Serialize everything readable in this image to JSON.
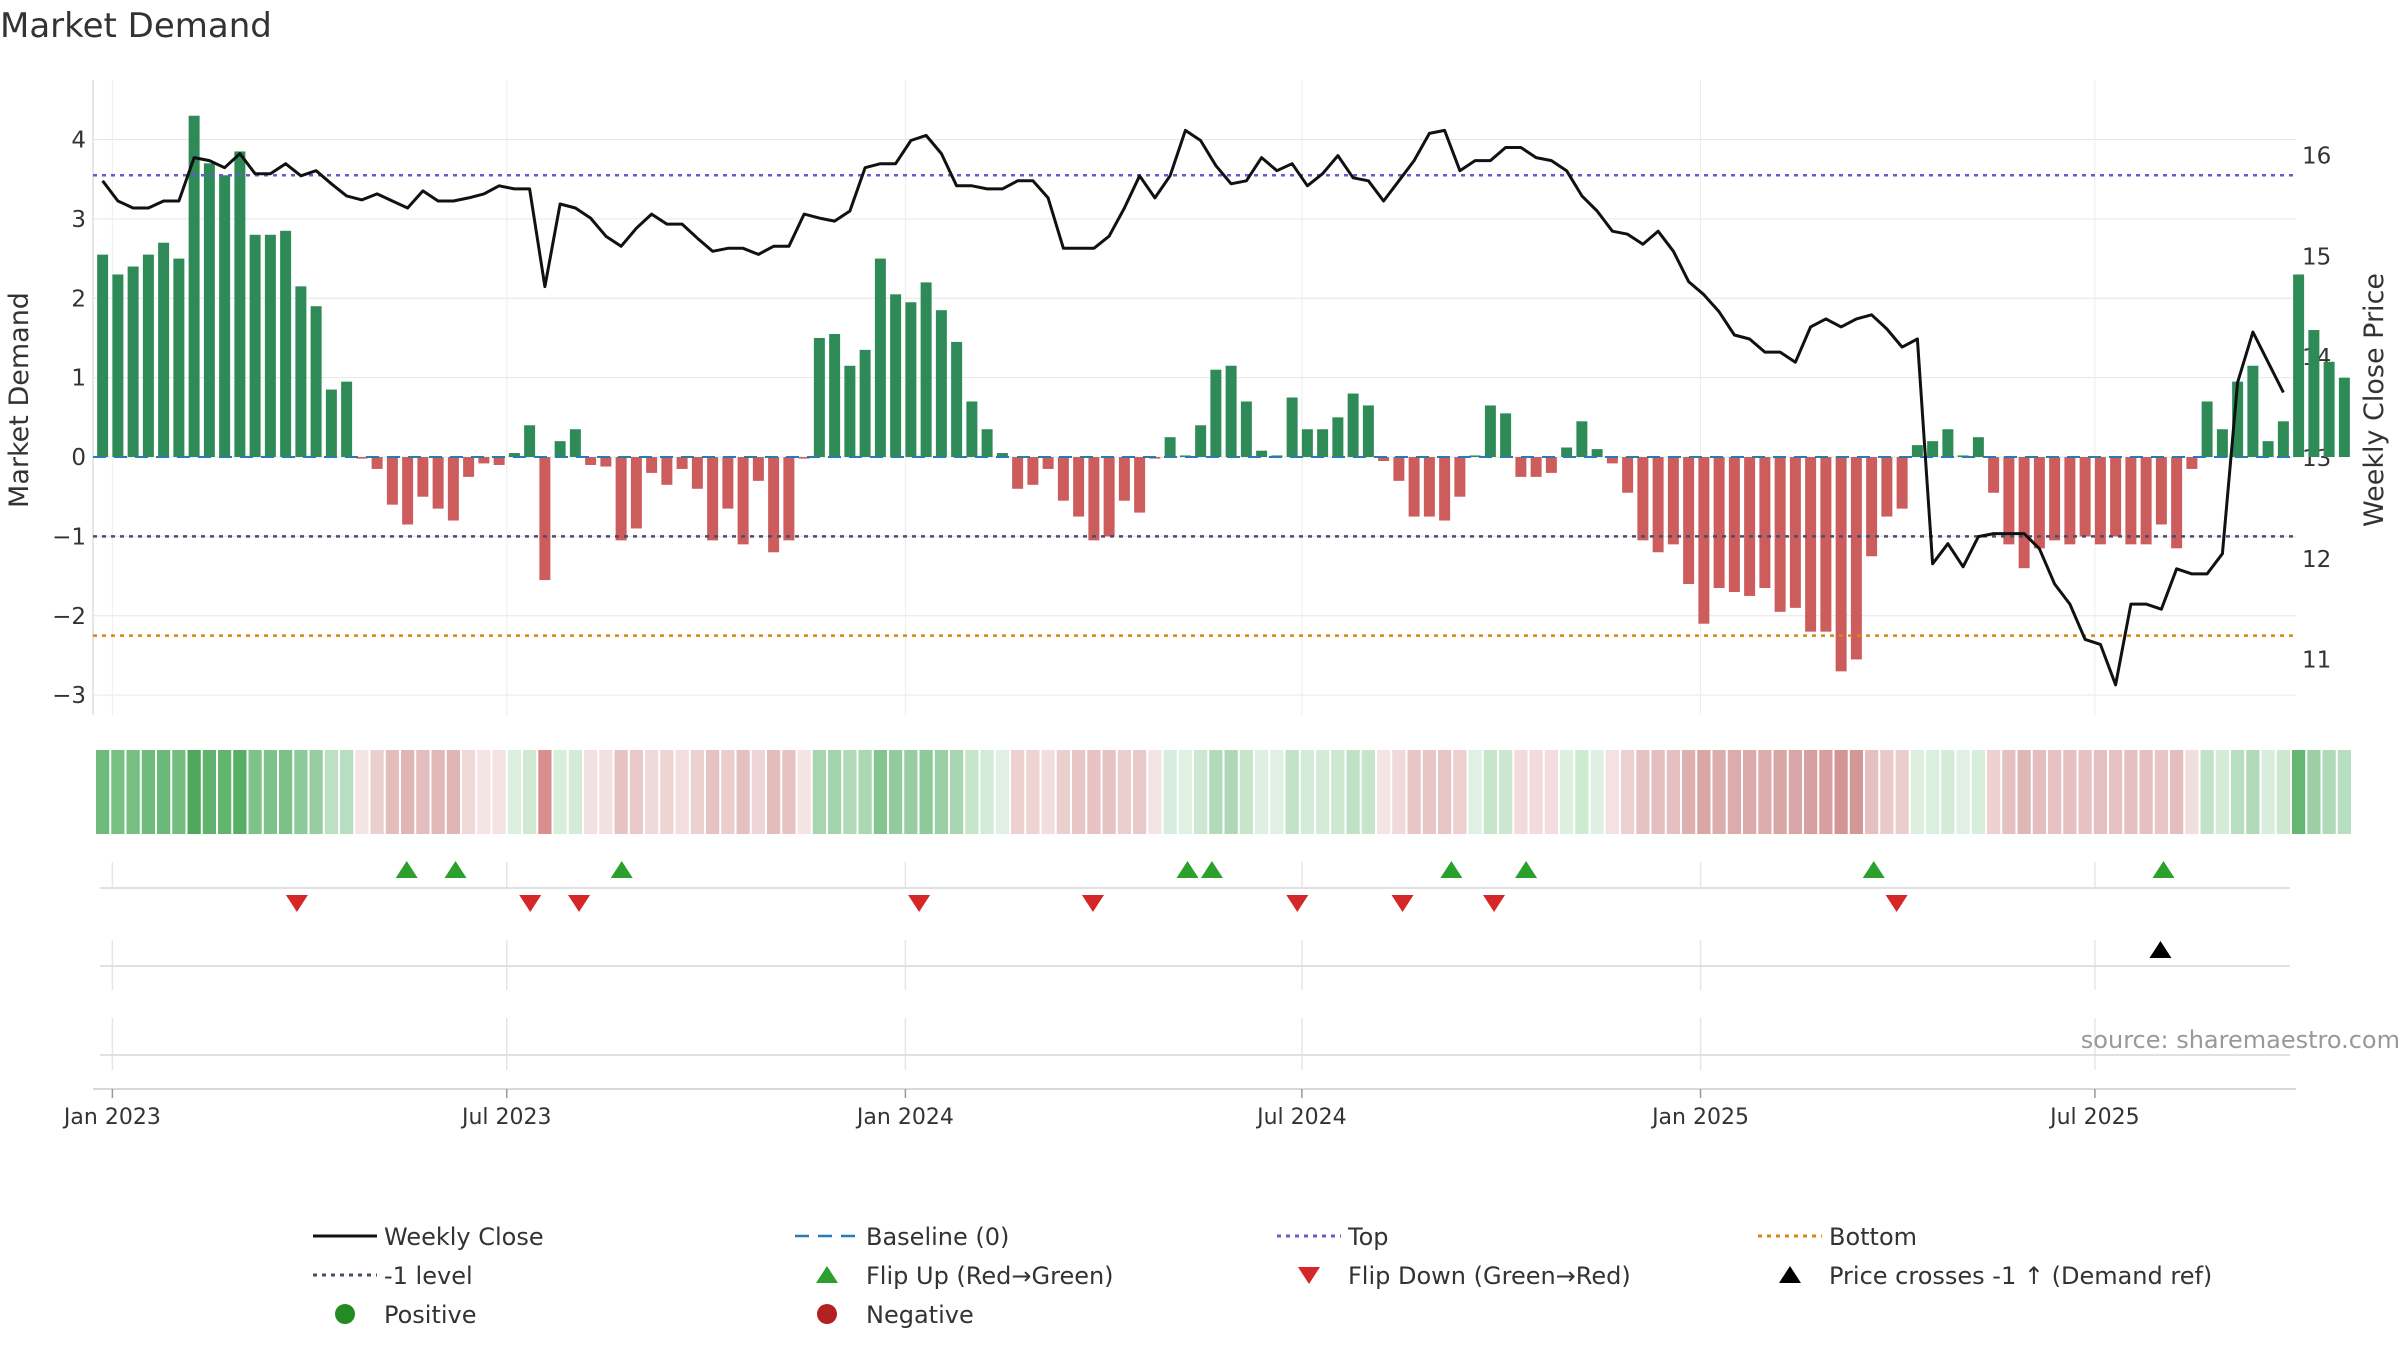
{
  "chart_data": {
    "type": "bar",
    "title": "Market Demand",
    "ylabel": "Market Demand",
    "ylabel_right": "Weekly Close Price",
    "ylim": [
      -3.25,
      4.75
    ],
    "ylim_right": [
      10.45,
      16.75
    ],
    "yticks": [
      4,
      3,
      2,
      1,
      0,
      -1,
      -2,
      -3
    ],
    "yticks_right": [
      16,
      15,
      14,
      13,
      12,
      11
    ],
    "ytick_labels": [
      "4",
      "3",
      "2",
      "1",
      "0",
      "−1",
      "−2",
      "−3"
    ],
    "ytick_labels_right": [
      "16",
      "15",
      "14",
      "13",
      "12",
      "11"
    ],
    "x_start_week": -1.14,
    "date_ticks": [
      {
        "label": "Jan 2023",
        "week": 0
      },
      {
        "label": "Jul 2023",
        "week": 25.86
      },
      {
        "label": "Jan 2024",
        "week": 52
      },
      {
        "label": "Jul 2024",
        "week": 78
      },
      {
        "label": "Jan 2025",
        "week": 104.14
      },
      {
        "label": "Jul 2025",
        "week": 130
      }
    ],
    "lines": {
      "top": 3.55,
      "minus1": -1,
      "bottom": -2.25,
      "baseline": 0
    },
    "demand_values": [
      2.55,
      2.3,
      2.4,
      2.55,
      2.7,
      2.5,
      4.3,
      3.7,
      3.55,
      3.85,
      2.8,
      2.8,
      2.85,
      2.15,
      1.9,
      0.85,
      0.95,
      -0.02,
      -0.15,
      -0.6,
      -0.85,
      -0.5,
      -0.65,
      -0.8,
      -0.25,
      -0.08,
      -0.1,
      0.05,
      0.4,
      -1.55,
      0.2,
      0.35,
      -0.1,
      -0.12,
      -1.05,
      -0.9,
      -0.2,
      -0.35,
      -0.15,
      -0.4,
      -1.05,
      -0.65,
      -1.1,
      -0.3,
      -1.2,
      -1.05,
      -0.02,
      1.5,
      1.55,
      1.15,
      1.35,
      2.5,
      2.05,
      1.95,
      2.2,
      1.85,
      1.45,
      0.7,
      0.35,
      0.05,
      -0.4,
      -0.35,
      -0.15,
      -0.55,
      -0.75,
      -1.05,
      -1.0,
      -0.55,
      -0.7,
      -0.02,
      0.25,
      0.02,
      0.4,
      1.1,
      1.15,
      0.7,
      0.08,
      0.02,
      0.75,
      0.35,
      0.35,
      0.5,
      0.8,
      0.65,
      -0.05,
      -0.3,
      -0.75,
      -0.75,
      -0.8,
      -0.5,
      0.02,
      0.65,
      0.55,
      -0.25,
      -0.25,
      -0.2,
      0.12,
      0.45,
      0.1,
      -0.08,
      -0.45,
      -1.05,
      -1.2,
      -1.1,
      -1.6,
      -2.1,
      -1.65,
      -1.7,
      -1.75,
      -1.65,
      -1.95,
      -1.9,
      -2.2,
      -2.2,
      -2.7,
      -2.55,
      -1.25,
      -0.75,
      -0.65,
      0.15,
      0.2,
      0.35,
      0.02,
      0.25,
      -0.45,
      -1.1,
      -1.4,
      -1.15,
      -1.05,
      -1.1,
      -1.0,
      -1.1,
      -1.0,
      -1.1,
      -1.1,
      -0.85,
      -1.15,
      -0.15,
      0.7,
      0.35,
      0.95,
      1.15,
      0.2,
      0.45,
      2.3,
      1.6,
      1.2,
      1.0
    ],
    "weekly_close": [
      15.75,
      15.55,
      15.48,
      15.48,
      15.55,
      15.55,
      15.98,
      15.95,
      15.88,
      16.02,
      15.82,
      15.82,
      15.92,
      15.8,
      15.85,
      15.72,
      15.6,
      15.56,
      15.62,
      15.55,
      15.48,
      15.65,
      15.55,
      15.55,
      15.58,
      15.62,
      15.7,
      15.67,
      15.67,
      14.7,
      15.52,
      15.48,
      15.38,
      15.2,
      15.1,
      15.28,
      15.42,
      15.32,
      15.32,
      15.18,
      15.05,
      15.08,
      15.08,
      15.02,
      15.1,
      15.1,
      15.42,
      15.38,
      15.35,
      15.45,
      15.88,
      15.92,
      15.92,
      16.15,
      16.2,
      16.02,
      15.7,
      15.7,
      15.67,
      15.67,
      15.75,
      15.75,
      15.58,
      15.08,
      15.08,
      15.08,
      15.2,
      15.48,
      15.8,
      15.58,
      15.8,
      16.25,
      16.15,
      15.9,
      15.72,
      15.75,
      15.98,
      15.85,
      15.92,
      15.7,
      15.82,
      16.0,
      15.78,
      15.75,
      15.55,
      15.75,
      15.95,
      16.22,
      16.25,
      15.85,
      15.95,
      15.95,
      16.08,
      16.08,
      15.98,
      15.95,
      15.85,
      15.6,
      15.45,
      15.25,
      15.22,
      15.12,
      15.25,
      15.05,
      14.75,
      14.62,
      14.45,
      14.22,
      14.18,
      14.05,
      14.05,
      13.95,
      14.3,
      14.38,
      14.3,
      14.38,
      14.42,
      14.28,
      14.1,
      14.18,
      11.95,
      12.15,
      11.92,
      12.22,
      12.25,
      12.25,
      12.25,
      12.1,
      11.75,
      11.55,
      11.2,
      11.15,
      10.75,
      11.55,
      11.55,
      11.5,
      11.9,
      11.85,
      11.85,
      12.05,
      13.75,
      14.25,
      13.95,
      13.65
    ],
    "strip_colors": [
      "#6fbb7d",
      "#79c085",
      "#76be82",
      "#6fbb7d",
      "#6ab978",
      "#74bd80",
      "#4da85c",
      "#5fb36c",
      "#62b56f",
      "#57ae65",
      "#7dc288",
      "#7dc288",
      "#7bc187",
      "#8ec99a",
      "#97cda1",
      "#bce0c2",
      "#b7dec0",
      "#f5e4e4",
      "#ebcece",
      "#e3bcbc",
      "#e0b5b5",
      "#e4bebe",
      "#e2b9b9",
      "#e0b5b5",
      "#f0d9d9",
      "#f5e4e4",
      "#f4e2e2",
      "#dcefdf",
      "#cfe9d4",
      "#d98f8f",
      "#d8eedc",
      "#d3ebd7",
      "#f3e0e0",
      "#f3e0e0",
      "#e6c2c2",
      "#e9c8c8",
      "#f0d9d9",
      "#eed3d3",
      "#f2dede",
      "#edd1d1",
      "#e6c2c2",
      "#ebcdcd",
      "#e5c0c0",
      "#efd6d6",
      "#e3bcbc",
      "#e6c2c2",
      "#f5e4e4",
      "#a6d5ae",
      "#a3d4ac",
      "#b0dab8",
      "#abd7b3",
      "#83c58f",
      "#94cb9e",
      "#98cda2",
      "#8ec99a",
      "#9bcfa4",
      "#a8d6b0",
      "#c6e5cb",
      "#d3ebd7",
      "#e0f1e3",
      "#edd1d1",
      "#eed3d3",
      "#f2dede",
      "#ebcece",
      "#e8c6c6",
      "#e6c2c2",
      "#e6c3c3",
      "#ebcece",
      "#e9c9c9",
      "#f5e4e4",
      "#d8eedc",
      "#e0f1e3",
      "#cde8d2",
      "#b2dbb9",
      "#afd9b6",
      "#c6e5cb",
      "#dff0e2",
      "#e0f1e3",
      "#c3e3c9",
      "#d3ebd7",
      "#d3ebd7",
      "#cce8d1",
      "#bfe1c6",
      "#c6e5cb",
      "#f5e4e4",
      "#f0d9d9",
      "#e8c6c6",
      "#e8c6c6",
      "#e7c5c5",
      "#ecd0d0",
      "#e0f1e3",
      "#c6e5cb",
      "#cbe7cf",
      "#f1dbdb",
      "#f1dbdb",
      "#f2dede",
      "#ddf0e0",
      "#ccebd1",
      "#dff0e2",
      "#f4e2e2",
      "#edd1d1",
      "#e6c2c2",
      "#e4bebe",
      "#e5c0c0",
      "#ddafaf",
      "#d9a5a5",
      "#dcadad",
      "#dcacac",
      "#dbaaaa",
      "#dcadad",
      "#d9a6a6",
      "#d9a7a7",
      "#d79f9f",
      "#d79f9f",
      "#d39494",
      "#d49797",
      "#e5c0c0",
      "#e9c9c9",
      "#ebcdcd",
      "#dcefdf",
      "#daefde",
      "#d3ebd7",
      "#e0f1e3",
      "#d8eedc",
      "#edd1d1",
      "#e5c0c0",
      "#e0b7b7",
      "#e4bebe",
      "#e6c2c2",
      "#e5c0c0",
      "#e6c2c2",
      "#e5c0c0",
      "#e6c2c2",
      "#e5c0c0",
      "#e5c0c0",
      "#e8c6c6",
      "#e4bebe",
      "#f2dede",
      "#c3e3c9",
      "#d3ebd7",
      "#b7dec0",
      "#b0dab8",
      "#d8eedc",
      "#cce8d1",
      "#64b670",
      "#9ccfa5",
      "#b0dab8",
      "#b7dec0"
    ],
    "flip_up_weeks": [
      19.3,
      22.5,
      33.4,
      70.5,
      72.1,
      87.8,
      92.7,
      115.5,
      134.5
    ],
    "flip_down_weeks": [
      12.1,
      27.4,
      30.6,
      52.9,
      64.3,
      77.7,
      84.6,
      90.6,
      117.0
    ],
    "price_cross_weeks": [
      134.3
    ],
    "legend": [
      {
        "label": "Weekly Close",
        "marker": "line-black"
      },
      {
        "label": "Baseline (0)",
        "marker": "dash-blue"
      },
      {
        "label": "Top",
        "marker": "dot-purple"
      },
      {
        "label": "Bottom",
        "marker": "dot-orange"
      },
      {
        "label": "-1 level",
        "marker": "dot-gray"
      },
      {
        "label": "Flip Up (Red→Green)",
        "marker": "tri-up-green"
      },
      {
        "label": "Flip Down (Green→Red)",
        "marker": "tri-down-red"
      },
      {
        "label": "Price crosses -1 ↑ (Demand ref)",
        "marker": "tri-up-black"
      },
      {
        "label": "Positive",
        "marker": "circle-green"
      },
      {
        "label": "Negative",
        "marker": "circle-red"
      }
    ],
    "source": "source: sharemaestro.com",
    "colors": {
      "pos": "#2e8b57",
      "neg": "#cd5c5c",
      "line": "#111111",
      "top": "#6a5acd",
      "bottom": "#d4880f",
      "minus1": "#4a4e6a",
      "baseline": "#2a7ab5",
      "up": "#2ca02c",
      "down": "#d62728",
      "pos_dot": "#228b22",
      "neg_dot": "#b22222",
      "grid": "#e6e6e6"
    }
  }
}
